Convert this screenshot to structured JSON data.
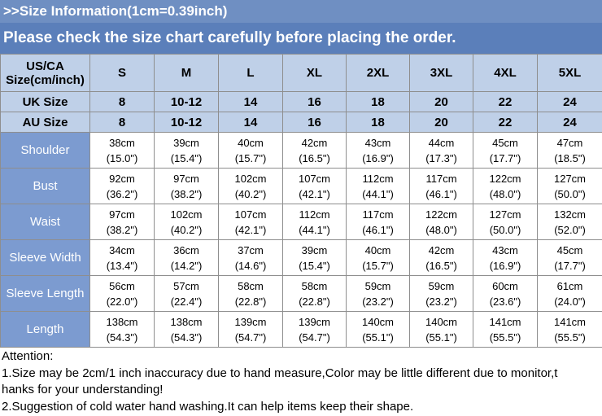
{
  "header": {
    "size_info": ">>Size Information(1cm=0.39inch)",
    "notice": "Please check the size chart carefully before placing the order."
  },
  "table": {
    "corner_label": "US/CA\nSize(cm/inch)",
    "sizes": [
      "S",
      "M",
      "L",
      "XL",
      "2XL",
      "3XL",
      "4XL",
      "5XL"
    ],
    "uk_label": "UK Size",
    "uk": [
      "8",
      "10-12",
      "14",
      "16",
      "18",
      "20",
      "22",
      "24"
    ],
    "au_label": "AU Size",
    "au": [
      "8",
      "10-12",
      "14",
      "16",
      "18",
      "20",
      "22",
      "24"
    ],
    "rows": [
      {
        "label": "Shoulder",
        "cm": [
          "38cm",
          "39cm",
          "40cm",
          "42cm",
          "43cm",
          "44cm",
          "45cm",
          "47cm"
        ],
        "inch": [
          "(15.0\")",
          "(15.4\")",
          "(15.7\")",
          "(16.5\")",
          "(16.9\")",
          "(17.3\")",
          "(17.7\")",
          "(18.5\")"
        ]
      },
      {
        "label": "Bust",
        "cm": [
          "92cm",
          "97cm",
          "102cm",
          "107cm",
          "112cm",
          "117cm",
          "122cm",
          "127cm"
        ],
        "inch": [
          "(36.2\")",
          "(38.2\")",
          "(40.2\")",
          "(42.1\")",
          "(44.1\")",
          "(46.1\")",
          "(48.0\")",
          "(50.0\")"
        ]
      },
      {
        "label": "Waist",
        "cm": [
          "97cm",
          "102cm",
          "107cm",
          "112cm",
          "117cm",
          "122cm",
          "127cm",
          "132cm"
        ],
        "inch": [
          "(38.2\")",
          "(40.2\")",
          "(42.1\")",
          "(44.1\")",
          "(46.1\")",
          "(48.0\")",
          "(50.0\")",
          "(52.0\")"
        ]
      },
      {
        "label": "Sleeve Width",
        "cm": [
          "34cm",
          "36cm",
          "37cm",
          "39cm",
          "40cm",
          "42cm",
          "43cm",
          "45cm"
        ],
        "inch": [
          "(13.4\")",
          "(14.2\")",
          "(14.6\")",
          "(15.4\")",
          "(15.7\")",
          "(16.5\")",
          "(16.9\")",
          "(17.7\")"
        ]
      },
      {
        "label": "Sleeve Length",
        "cm": [
          "56cm",
          "57cm",
          "58cm",
          "58cm",
          "59cm",
          "59cm",
          "60cm",
          "61cm"
        ],
        "inch": [
          "(22.0\")",
          "(22.4\")",
          "(22.8\")",
          "(22.8\")",
          "(23.2\")",
          "(23.2\")",
          "(23.6\")",
          "(24.0\")"
        ]
      },
      {
        "label": "Length",
        "cm": [
          "138cm",
          "138cm",
          "139cm",
          "139cm",
          "140cm",
          "140cm",
          "141cm",
          "141cm"
        ],
        "inch": [
          "(54.3\")",
          "(54.3\")",
          "(54.7\")",
          "(54.7\")",
          "(55.1\")",
          "(55.1\")",
          "(55.5\")",
          "(55.5\")"
        ]
      }
    ]
  },
  "attention": {
    "title": "Attention:",
    "line1": "1.Size may be 2cm/1 inch inaccuracy due to hand measure,Color may be little different due to monitor,t",
    "line1b": "hanks for your understanding!",
    "line2": "2.Suggestion of cold water hand washing.It can help items keep their shape."
  },
  "colors": {
    "title_bar": "#6f8fc2",
    "notice_bar": "#5b7fba",
    "header_cell": "#bfd0e8",
    "row_label_cell": "#7c9bd0"
  }
}
